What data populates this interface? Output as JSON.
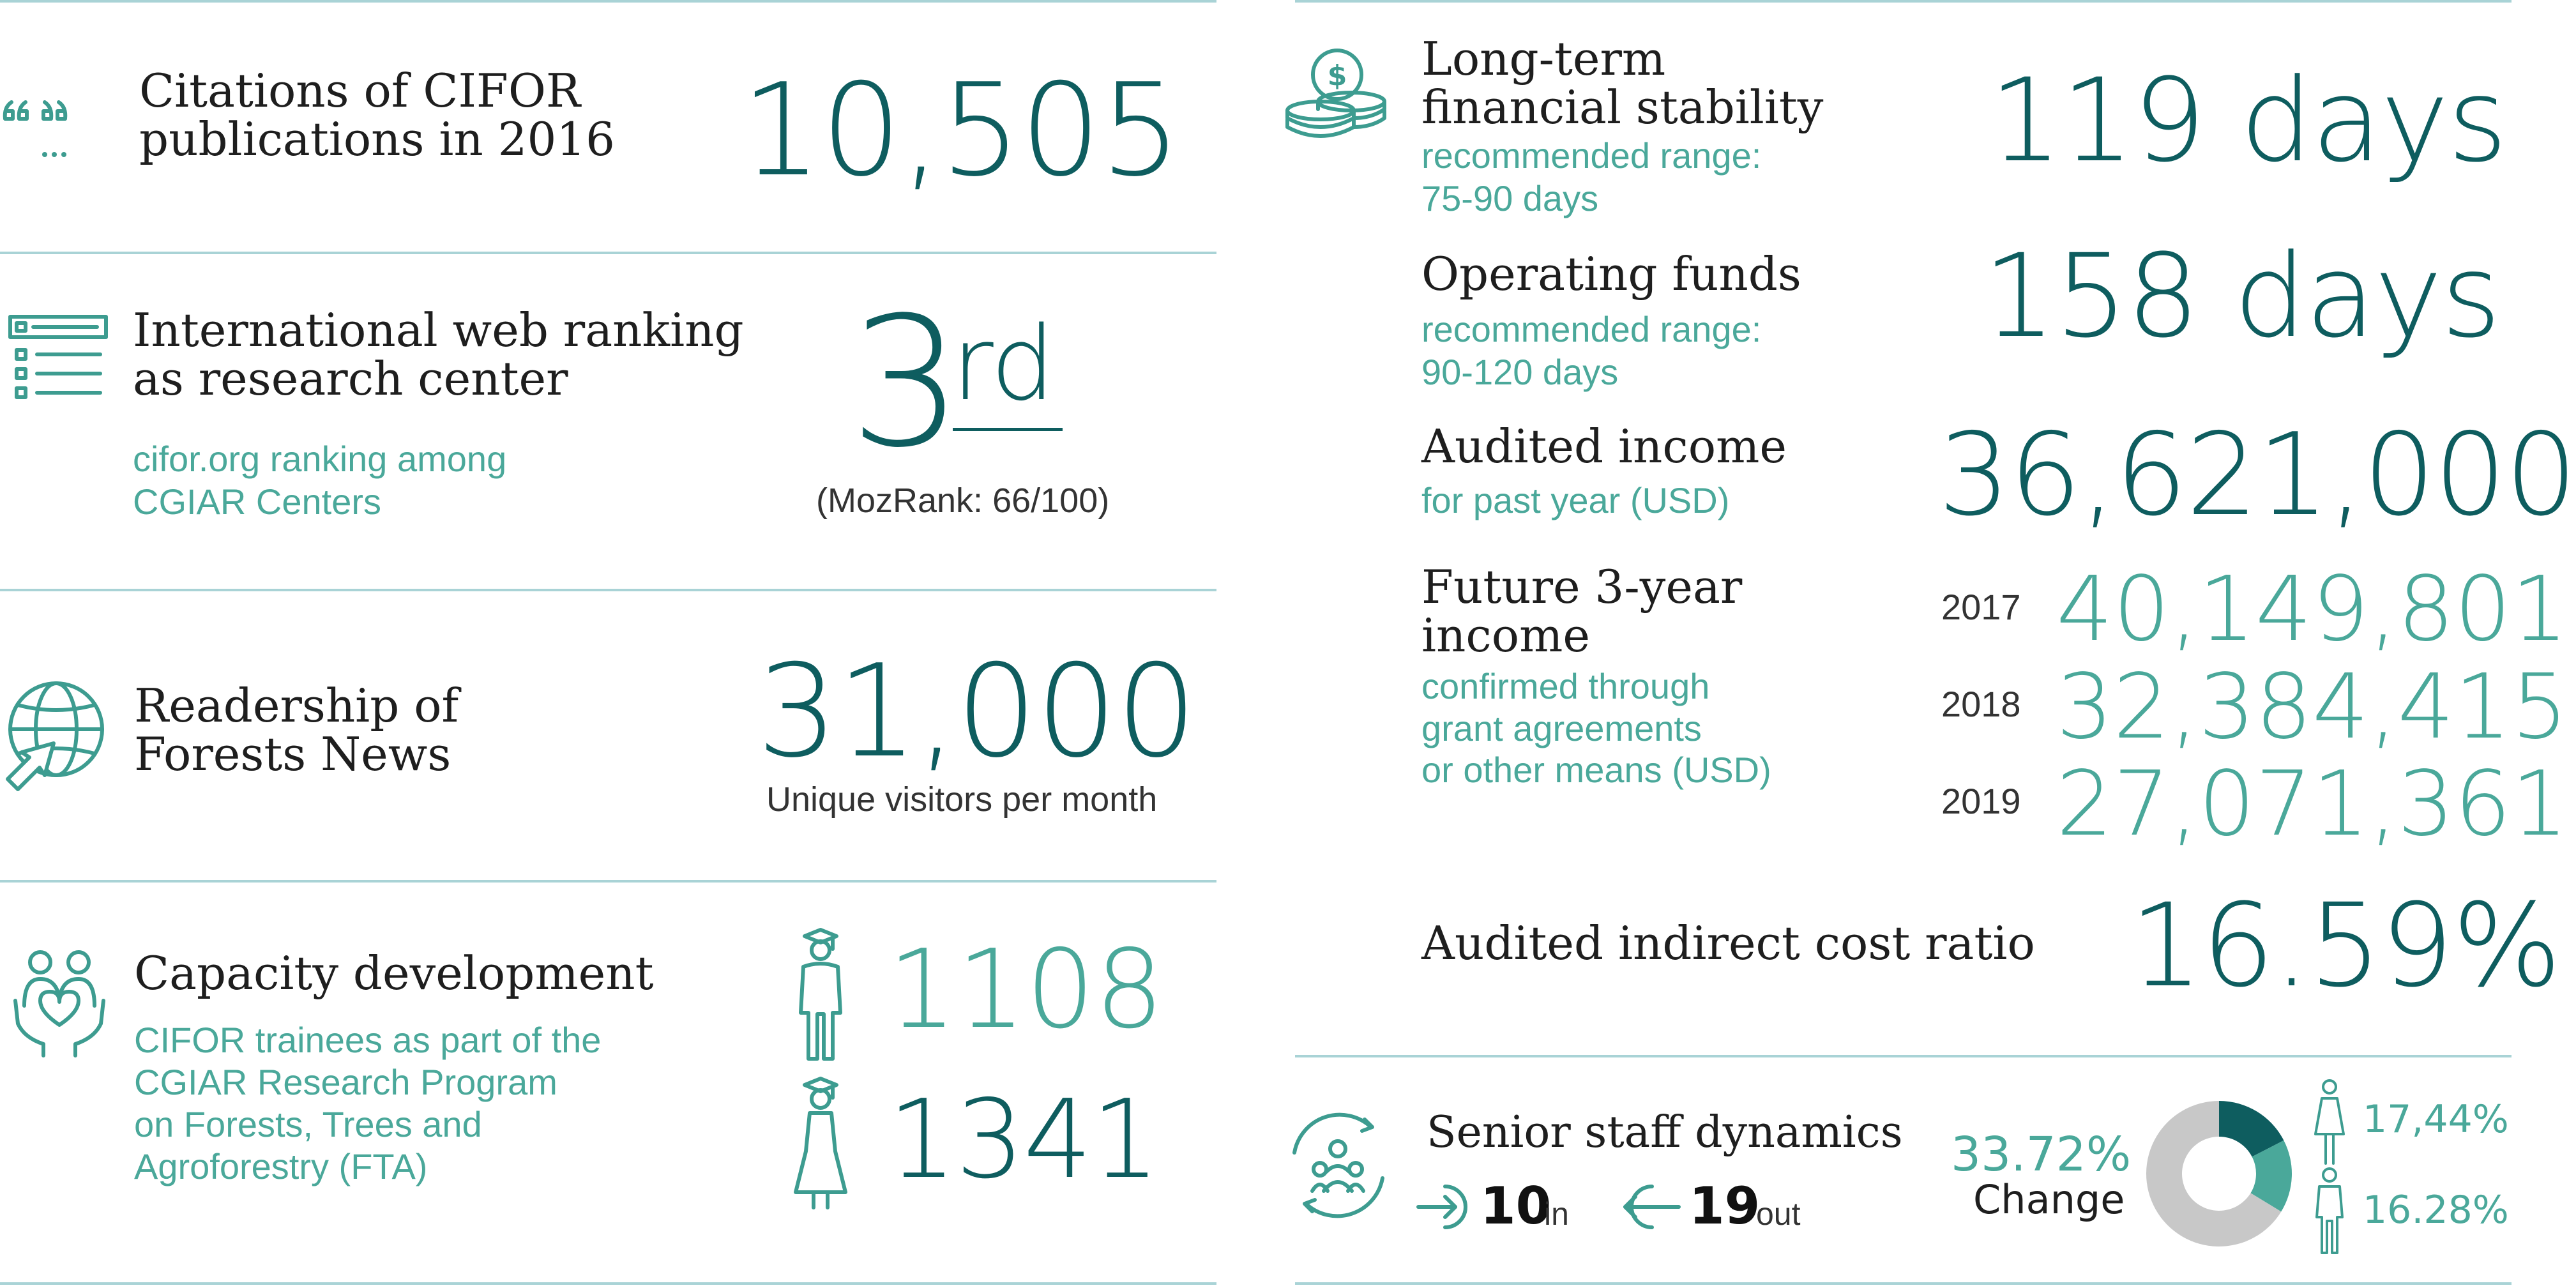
{
  "left": {
    "citations": {
      "title_line1": "Citations of CIFOR",
      "title_line2": "publications in 2016",
      "value": "10,505"
    },
    "web_ranking": {
      "title_line1": "International web ranking",
      "title_line2": "as research center",
      "sub_line1": "cifor.org ranking among",
      "sub_line2": "CGIAR Centers",
      "rank_number": "3",
      "rank_suffix": "rd",
      "note": "(MozRank: 66/100)"
    },
    "readership": {
      "title_line1": "Readership of",
      "title_line2": "Forests News",
      "value": "31,000",
      "unit": "Unique visitors per month"
    },
    "capacity": {
      "title": "Capacity development",
      "sub_line1": "CIFOR trainees as part of the",
      "sub_line2": "CGIAR Research Program",
      "sub_line3": "on Forests, Trees and",
      "sub_line4": "Agroforestry (FTA)",
      "male_value": "1108",
      "female_value": "1341"
    }
  },
  "right": {
    "stability": {
      "title_line1": "Long-term",
      "title_line2": "financial stability",
      "sub_line1": "recommended range:",
      "sub_line2": "75-90 days",
      "value": "119 days"
    },
    "operating": {
      "title": "Operating funds",
      "sub_line1": "recommended range:",
      "sub_line2": "90-120 days",
      "value": "158 days"
    },
    "audited_income": {
      "title": "Audited income",
      "sub": "for past year (USD)",
      "value": "36,621,000"
    },
    "future_income": {
      "title_line1": "Future 3-year",
      "title_line2": "income",
      "sub_line1": "confirmed through",
      "sub_line2": "grant agreements",
      "sub_line3": "or other means (USD)",
      "rows": [
        {
          "year": "2017",
          "value": "40,149,801"
        },
        {
          "year": "2018",
          "value": "32,384,415"
        },
        {
          "year": "2019",
          "value": "27,071,361"
        }
      ]
    },
    "cost_ratio": {
      "title": "Audited indirect cost ratio",
      "value": "16.59%"
    },
    "senior_staff": {
      "title": "Senior staff dynamics",
      "in_value": "10",
      "in_label": "in",
      "out_value": "19",
      "out_label": "out",
      "change_value": "33.72%",
      "change_label": "Change",
      "female_pct": "17,44%",
      "male_pct": "16.28%",
      "donut_female_fraction": 0.1744,
      "donut_male_fraction": 0.1628
    }
  },
  "colors": {
    "dark_teal": "#0e5d5f",
    "light_teal": "#4aa89a",
    "rule": "#a9d3d6",
    "donut_grey": "#c8c8c8"
  }
}
